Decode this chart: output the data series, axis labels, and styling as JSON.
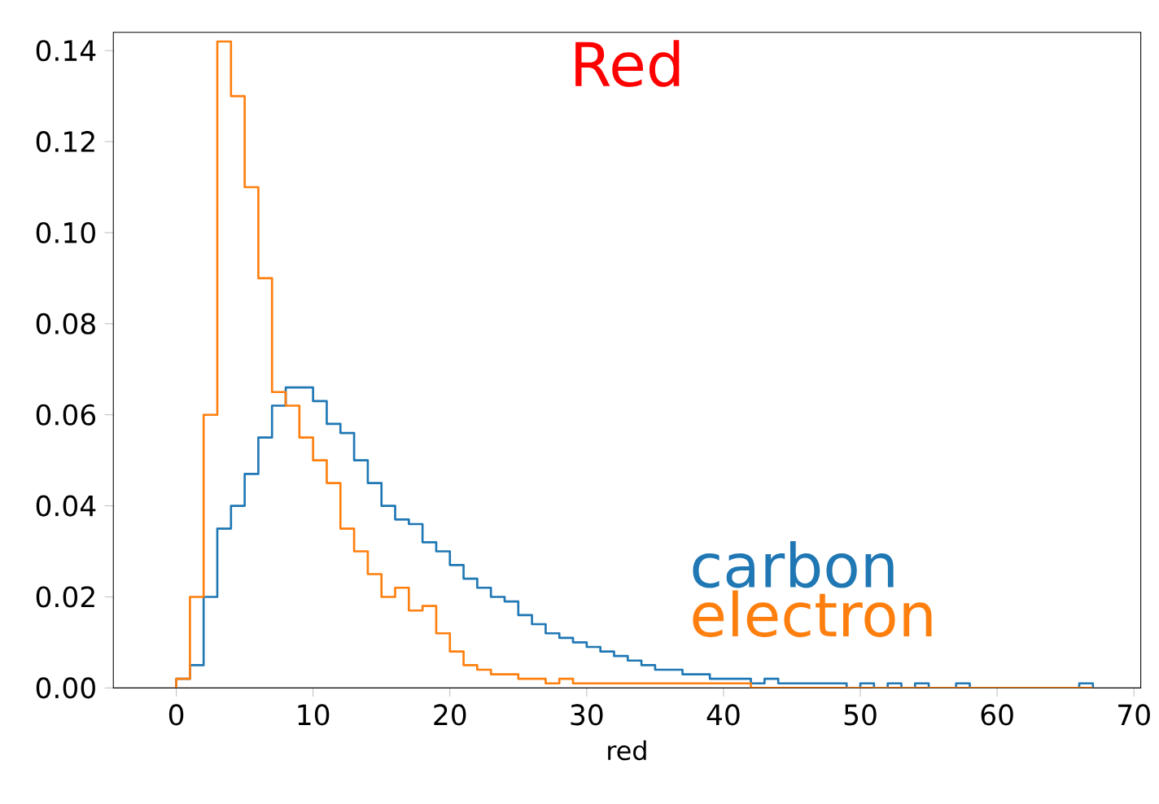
{
  "chart_data": {
    "type": "histogram",
    "title": "Red",
    "xlabel": "red",
    "bins": [
      0,
      1,
      2,
      3,
      4,
      5,
      6,
      7,
      8,
      9,
      10,
      11,
      12,
      13,
      14,
      15,
      16,
      17,
      18,
      19,
      20,
      21,
      22,
      23,
      24,
      25,
      26,
      27,
      28,
      29,
      30,
      31,
      32,
      33,
      34,
      35,
      36,
      37,
      38,
      39,
      40,
      41,
      42,
      43,
      44,
      45,
      46,
      47,
      48,
      49,
      50,
      51,
      52,
      53,
      54,
      55,
      56,
      57,
      58,
      59,
      60,
      61,
      62,
      63,
      64,
      65,
      66,
      67
    ],
    "series": [
      {
        "name": "carbon",
        "color": "#1f77b4",
        "values": [
          0.002,
          0.005,
          0.02,
          0.035,
          0.04,
          0.047,
          0.055,
          0.062,
          0.066,
          0.066,
          0.063,
          0.058,
          0.056,
          0.05,
          0.045,
          0.04,
          0.037,
          0.036,
          0.032,
          0.03,
          0.027,
          0.024,
          0.022,
          0.02,
          0.019,
          0.016,
          0.014,
          0.012,
          0.011,
          0.01,
          0.009,
          0.008,
          0.007,
          0.006,
          0.005,
          0.004,
          0.004,
          0.003,
          0.003,
          0.002,
          0.002,
          0.002,
          0.001,
          0.002,
          0.001,
          0.001,
          0.001,
          0.001,
          0.001,
          0,
          0.001,
          0,
          0.001,
          0,
          0.001,
          0,
          0,
          0.001,
          0,
          0,
          0,
          0,
          0,
          0,
          0,
          0,
          0.001
        ]
      },
      {
        "name": "electron",
        "color": "#ff7f0e",
        "values": [
          0.002,
          0.02,
          0.06,
          0.142,
          0.13,
          0.11,
          0.09,
          0.065,
          0.062,
          0.055,
          0.05,
          0.045,
          0.035,
          0.03,
          0.025,
          0.02,
          0.022,
          0.017,
          0.018,
          0.012,
          0.008,
          0.005,
          0.004,
          0.003,
          0.003,
          0.002,
          0.002,
          0.001,
          0.002,
          0.001,
          0.001,
          0.001,
          0.001,
          0.001,
          0.001,
          0.001,
          0.001,
          0.001,
          0.001,
          0.001,
          0.001,
          0.001,
          0,
          0,
          0,
          0,
          0,
          0,
          0,
          0,
          0,
          0,
          0,
          0,
          0,
          0,
          0,
          0,
          0,
          0,
          0,
          0,
          0,
          0,
          0,
          0,
          0
        ]
      }
    ],
    "xlim": [
      -4.6,
      70.5
    ],
    "ylim": [
      0,
      0.144
    ],
    "xticks": [
      0,
      10,
      20,
      30,
      40,
      50,
      60,
      70
    ],
    "yticks": [
      {
        "value": 0,
        "label": "0.00"
      },
      {
        "value": 0.02,
        "label": "0.02"
      },
      {
        "value": 0.04,
        "label": "0.04"
      },
      {
        "value": 0.06,
        "label": "0.06"
      },
      {
        "value": 0.08,
        "label": "0.08"
      },
      {
        "value": 0.1,
        "label": "0.10"
      },
      {
        "value": 0.12,
        "label": "0.12"
      },
      {
        "value": 0.14,
        "label": "0.14"
      }
    ],
    "legend": "bottom right",
    "grid": false
  }
}
